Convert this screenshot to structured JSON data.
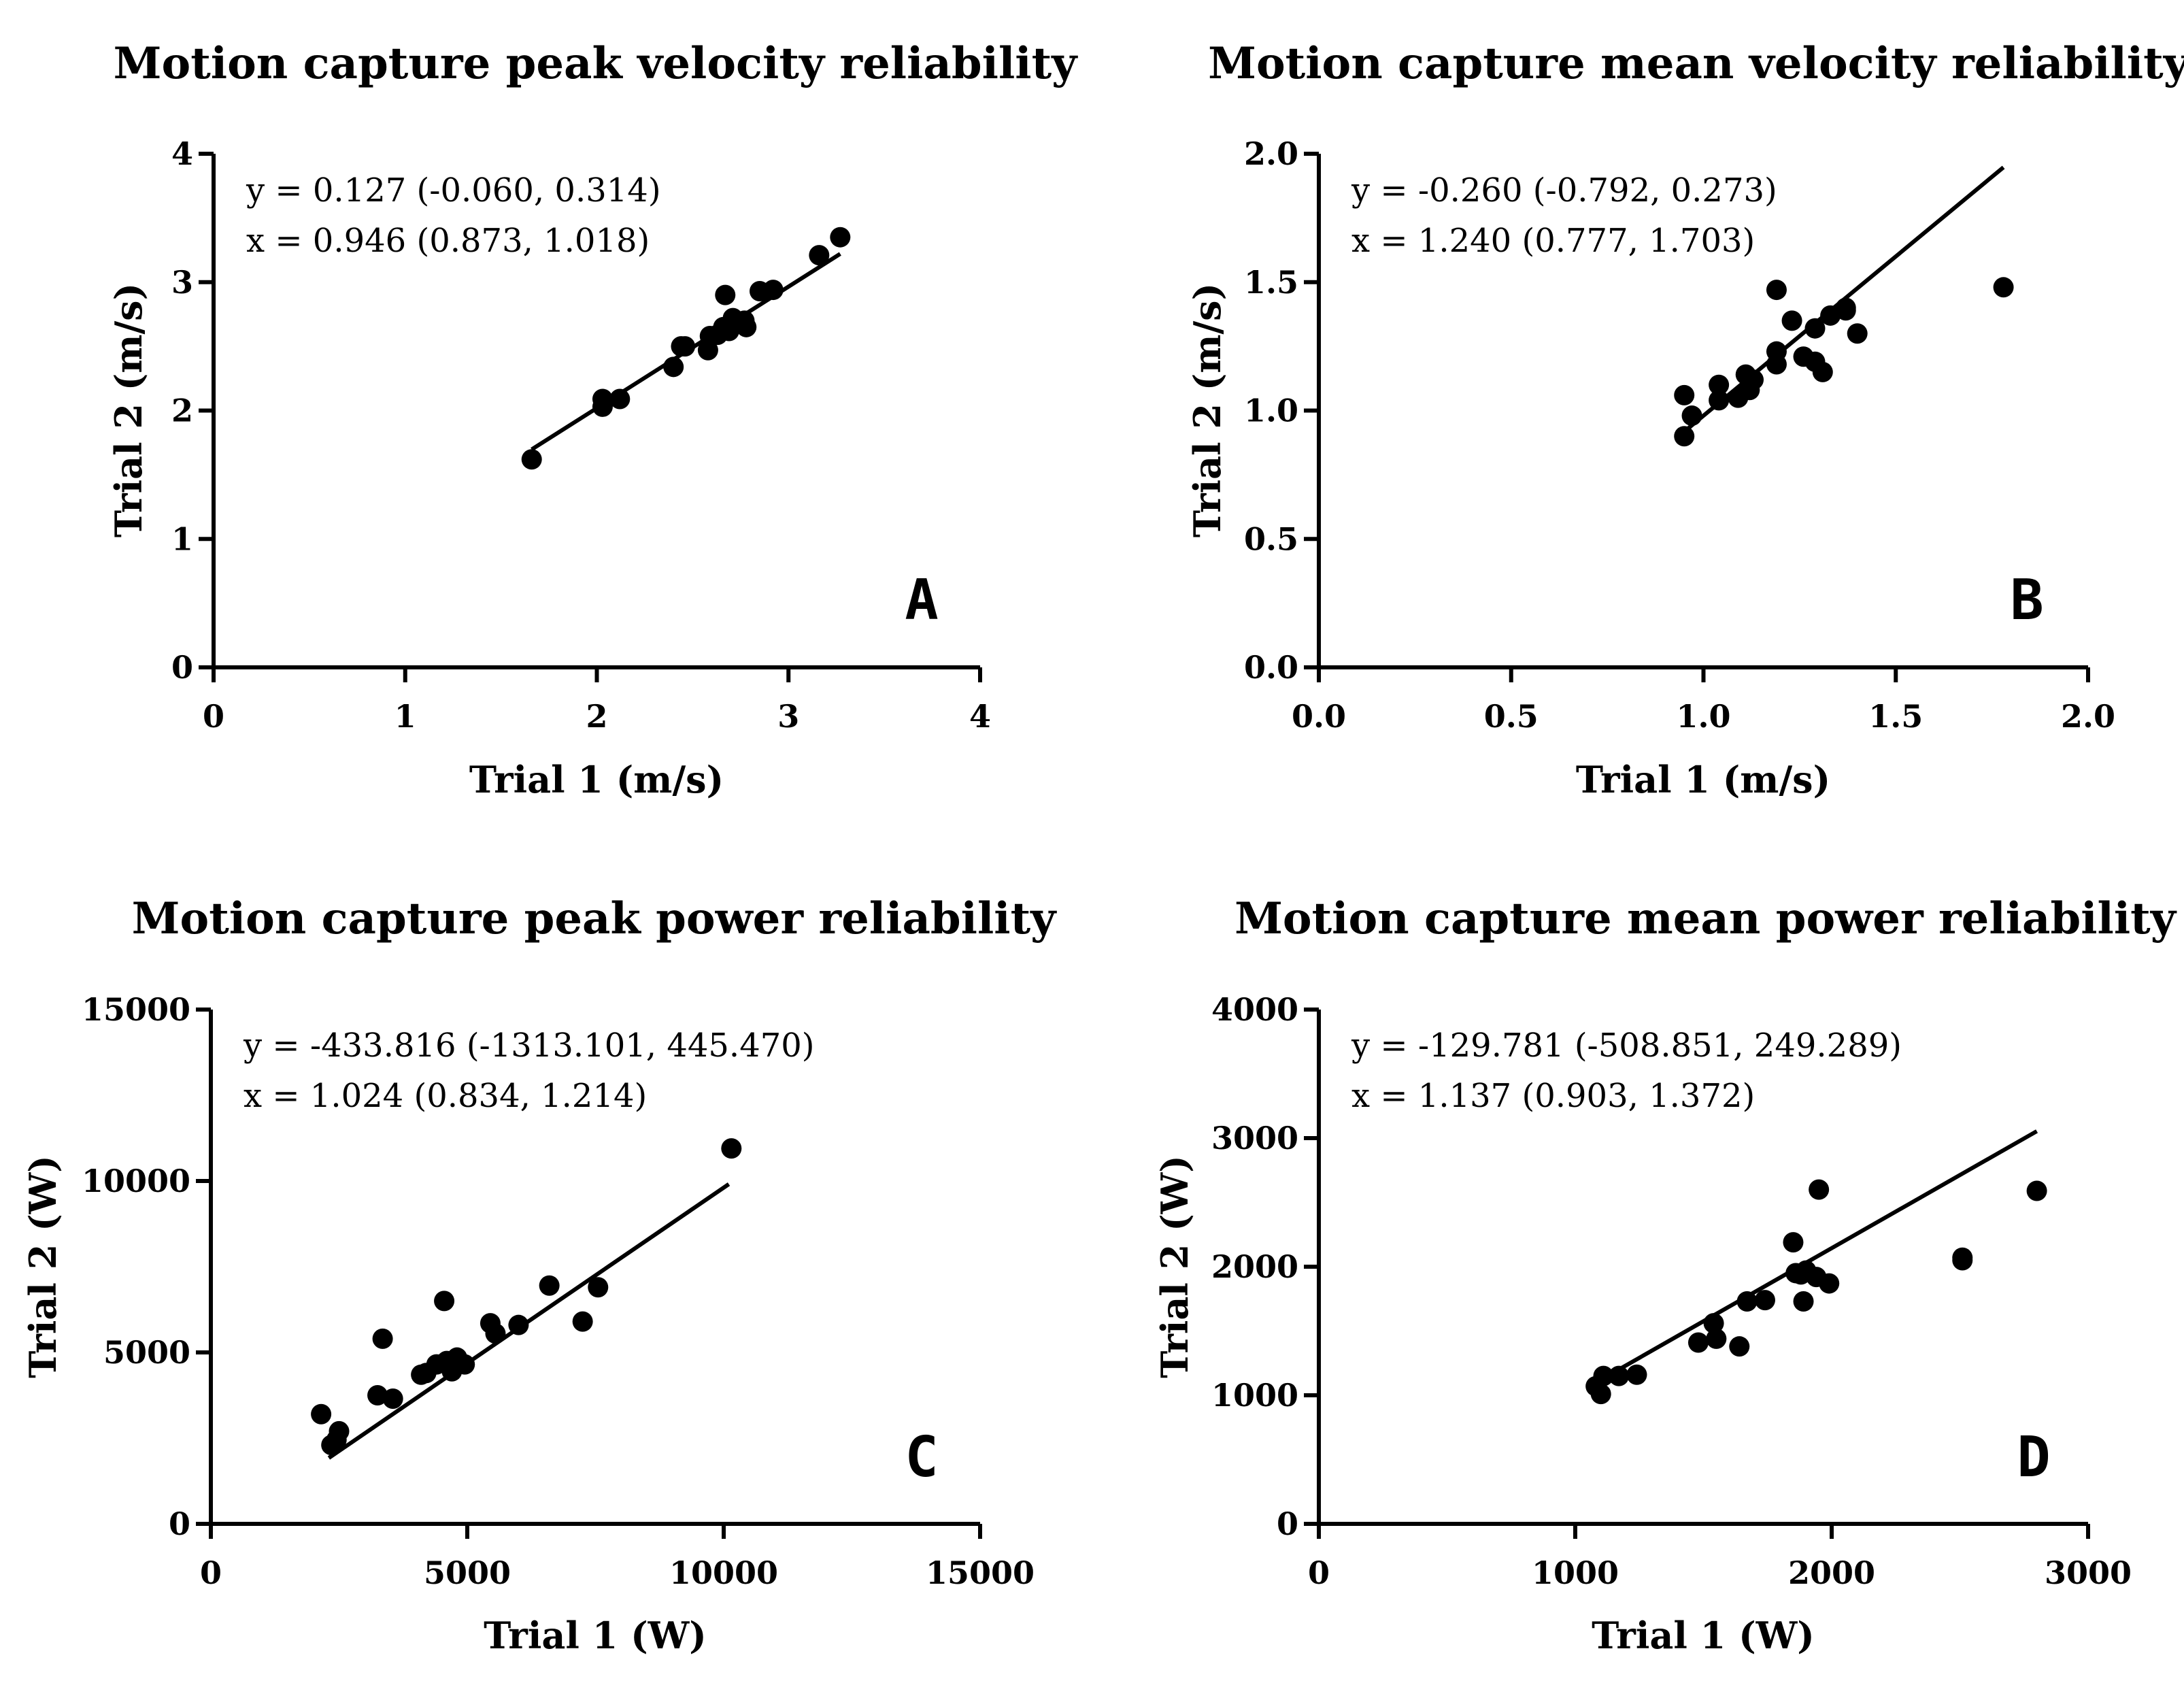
{
  "chart_data": [
    {
      "id": "A",
      "type": "scatter",
      "title": "Motion capture peak velocity reliability",
      "xlabel": "Trial 1 (m/s)",
      "ylabel": "Trial 2 (m/s)",
      "xlim": [
        0,
        4
      ],
      "ylim": [
        0,
        4
      ],
      "xticks": [
        0,
        1,
        2,
        3,
        4
      ],
      "yticks": [
        0,
        1,
        2,
        3,
        4
      ],
      "xtick_labels": [
        "0",
        "1",
        "2",
        "3",
        "4"
      ],
      "ytick_labels": [
        "0",
        "1",
        "2",
        "3",
        "4"
      ],
      "annotation_lines": [
        "y = 0.127 (-0.060, 0.314)",
        "x = 0.946 (0.873, 1.018)"
      ],
      "panel_letter": "A",
      "regression": {
        "intercept": 0.127,
        "slope": 0.946,
        "x_range": [
          1.66,
          3.27
        ]
      },
      "points": [
        [
          1.66,
          1.62
        ],
        [
          2.03,
          2.03
        ],
        [
          2.03,
          2.09
        ],
        [
          2.12,
          2.09
        ],
        [
          2.4,
          2.34
        ],
        [
          2.44,
          2.5
        ],
        [
          2.46,
          2.5
        ],
        [
          2.58,
          2.47
        ],
        [
          2.59,
          2.58
        ],
        [
          2.63,
          2.59
        ],
        [
          2.66,
          2.65
        ],
        [
          2.67,
          2.9
        ],
        [
          2.69,
          2.62
        ],
        [
          2.71,
          2.72
        ],
        [
          2.77,
          2.7
        ],
        [
          2.78,
          2.65
        ],
        [
          2.85,
          2.93
        ],
        [
          2.92,
          2.94
        ],
        [
          3.16,
          3.21
        ],
        [
          3.27,
          3.35
        ]
      ]
    },
    {
      "id": "B",
      "type": "scatter",
      "title": "Motion capture mean velocity reliability",
      "xlabel": "Trial 1 (m/s)",
      "ylabel": "Trial 2 (m/s)",
      "xlim": [
        0,
        2
      ],
      "ylim": [
        0,
        2
      ],
      "xticks": [
        0,
        0.5,
        1,
        1.5,
        2
      ],
      "yticks": [
        0,
        0.5,
        1,
        1.5,
        2
      ],
      "xtick_labels": [
        "0.0",
        "0.5",
        "1.0",
        "1.5",
        "2.0"
      ],
      "ytick_labels": [
        "0.0",
        "0.5",
        "1.0",
        "1.5",
        "2.0"
      ],
      "annotation_lines": [
        "y = -0.260 (-0.792, 0.273)",
        "x = 1.240 (0.777, 1.703)"
      ],
      "panel_letter": "B",
      "regression": {
        "intercept": -0.26,
        "slope": 1.24,
        "x_range": [
          0.95,
          1.78
        ]
      },
      "points": [
        [
          0.95,
          0.9
        ],
        [
          0.95,
          1.06
        ],
        [
          0.97,
          0.98
        ],
        [
          1.04,
          1.04
        ],
        [
          1.04,
          1.1
        ],
        [
          1.09,
          1.05
        ],
        [
          1.11,
          1.14
        ],
        [
          1.12,
          1.08
        ],
        [
          1.13,
          1.12
        ],
        [
          1.19,
          1.18
        ],
        [
          1.19,
          1.23
        ],
        [
          1.19,
          1.47
        ],
        [
          1.23,
          1.35
        ],
        [
          1.26,
          1.21
        ],
        [
          1.29,
          1.19
        ],
        [
          1.29,
          1.32
        ],
        [
          1.31,
          1.15
        ],
        [
          1.33,
          1.37
        ],
        [
          1.37,
          1.39
        ],
        [
          1.37,
          1.4
        ],
        [
          1.4,
          1.3
        ],
        [
          1.78,
          1.48
        ]
      ]
    },
    {
      "id": "C",
      "type": "scatter",
      "title": "Motion capture peak power reliability",
      "xlabel": "Trial 1 (W)",
      "ylabel": "Trial 2 (W)",
      "xlim": [
        0,
        15000
      ],
      "ylim": [
        0,
        15000
      ],
      "xticks": [
        0,
        5000,
        10000,
        15000
      ],
      "yticks": [
        0,
        5000,
        10000,
        15000
      ],
      "xtick_labels": [
        "0",
        "5000",
        "10000",
        "15000"
      ],
      "ytick_labels": [
        "0",
        "5000",
        "10000",
        "15000"
      ],
      "annotation_lines": [
        "y = -433.816 (-1313.101, 445.470)",
        "x = 1.024 (0.834, 1.214)"
      ],
      "panel_letter": "C",
      "regression": {
        "intercept": -433.816,
        "slope": 1.024,
        "x_range": [
          2300,
          10100
        ]
      },
      "points": [
        [
          2150,
          3200
        ],
        [
          2350,
          2300
        ],
        [
          2450,
          2450
        ],
        [
          2500,
          2700
        ],
        [
          3250,
          3750
        ],
        [
          3350,
          5400
        ],
        [
          3550,
          3650
        ],
        [
          4100,
          4350
        ],
        [
          4200,
          4400
        ],
        [
          4400,
          4650
        ],
        [
          4600,
          4750
        ],
        [
          4550,
          6500
        ],
        [
          4700,
          4450
        ],
        [
          4800,
          4850
        ],
        [
          4950,
          4650
        ],
        [
          5450,
          5850
        ],
        [
          5550,
          5550
        ],
        [
          6000,
          5800
        ],
        [
          6600,
          6950
        ],
        [
          7250,
          5900
        ],
        [
          7550,
          6900
        ],
        [
          10150,
          10950
        ]
      ]
    },
    {
      "id": "D",
      "type": "scatter",
      "title": "Motion capture mean power reliability",
      "xlabel": "Trial 1 (W)",
      "ylabel": "Trial 2 (W)",
      "xlim": [
        0,
        3000
      ],
      "ylim": [
        0,
        4000
      ],
      "xticks": [
        0,
        1000,
        2000,
        3000
      ],
      "yticks": [
        0,
        1000,
        2000,
        3000,
        4000
      ],
      "xtick_labels": [
        "0",
        "1000",
        "2000",
        "3000"
      ],
      "ytick_labels": [
        "0",
        "1000",
        "2000",
        "3000",
        "4000"
      ],
      "annotation_lines": [
        "y = -129.781 (-508.851, 249.289)",
        "x = 1.137 (0.903, 1.372)"
      ],
      "panel_letter": "D",
      "regression": {
        "intercept": -129.781,
        "slope": 1.137,
        "x_range": [
          1110,
          2800
        ]
      },
      "points": [
        [
          1080,
          1070
        ],
        [
          1100,
          1010
        ],
        [
          1110,
          1150
        ],
        [
          1170,
          1150
        ],
        [
          1240,
          1160
        ],
        [
          1480,
          1410
        ],
        [
          1540,
          1560
        ],
        [
          1550,
          1440
        ],
        [
          1640,
          1380
        ],
        [
          1670,
          1730
        ],
        [
          1740,
          1740
        ],
        [
          1850,
          2190
        ],
        [
          1860,
          1950
        ],
        [
          1880,
          1940
        ],
        [
          1890,
          1730
        ],
        [
          1900,
          1970
        ],
        [
          1940,
          1920
        ],
        [
          1950,
          2600
        ],
        [
          1990,
          1870
        ],
        [
          2510,
          2050
        ],
        [
          2510,
          2070
        ],
        [
          2800,
          2590
        ]
      ]
    }
  ]
}
